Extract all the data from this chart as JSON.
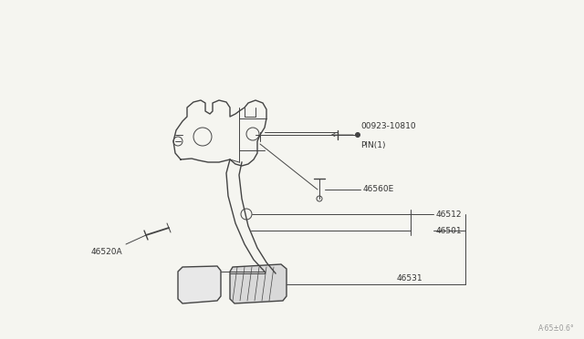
{
  "bg_color": "#f5f5f0",
  "line_color": "#444444",
  "text_color": "#444444",
  "fig_width": 6.4,
  "fig_height": 3.72,
  "dpi": 100,
  "watermark": "A·65±0.6°",
  "label_00923": "00923-10810",
  "label_pin": "PIN(1)",
  "label_46560E": "46560E",
  "label_46512": "46512",
  "label_46501": "46501",
  "label_46531": "46531",
  "label_46520A": "46520A"
}
